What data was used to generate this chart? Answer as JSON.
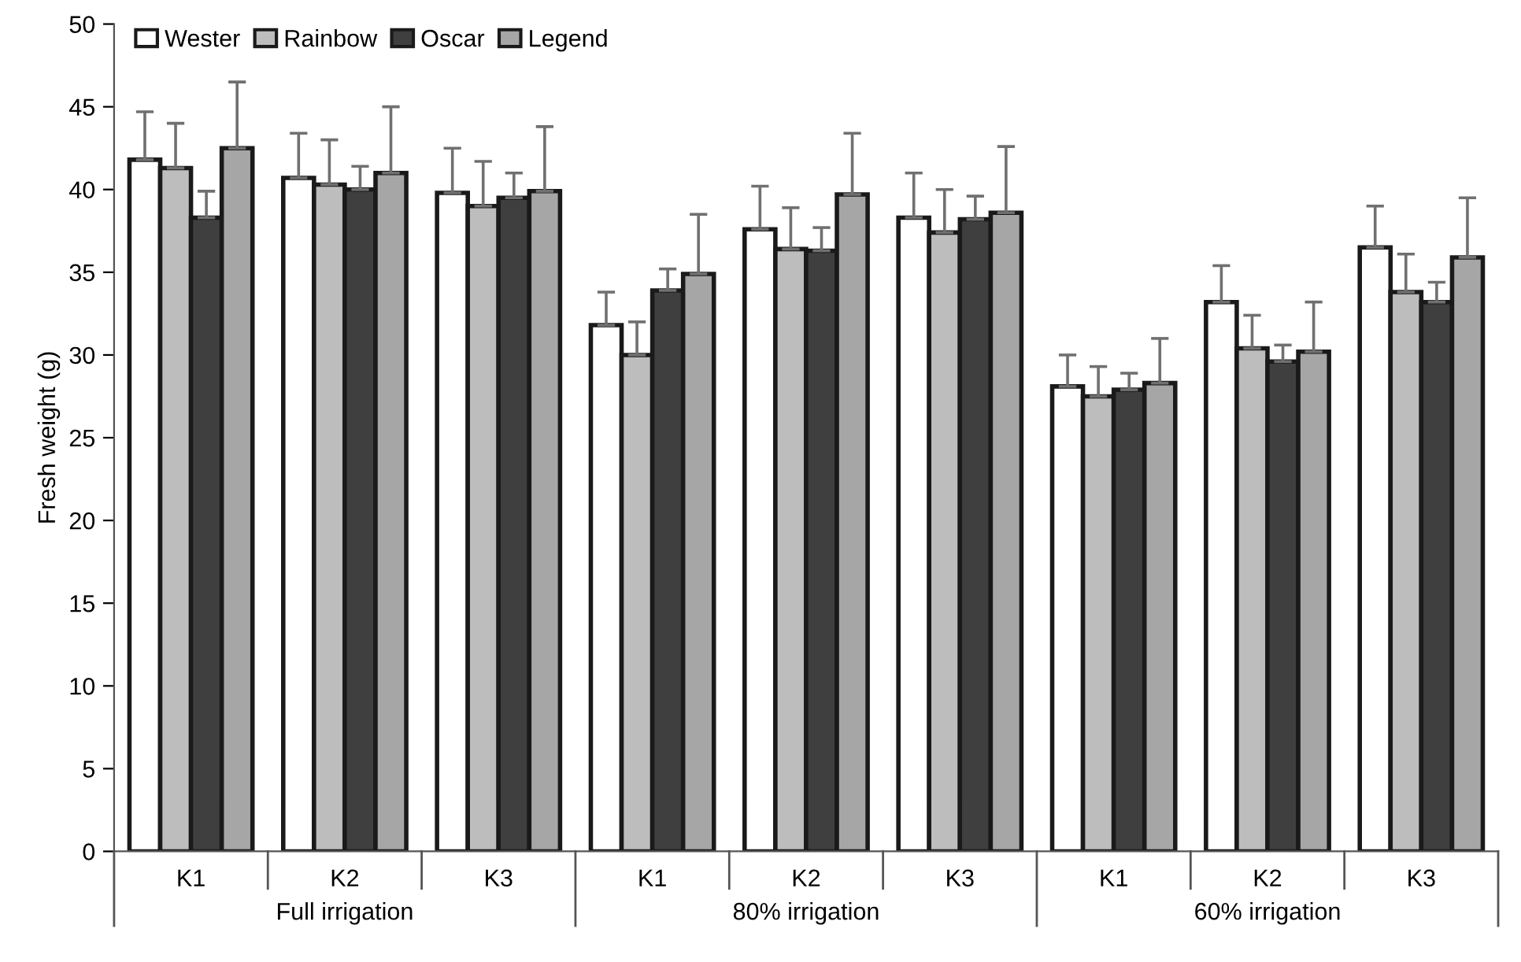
{
  "chart_data": {
    "type": "bar",
    "ylabel": "Fresh weight (g)",
    "categories": [
      "K1",
      "K2",
      "K3",
      "K1",
      "K2",
      "K3",
      "K1",
      "K2",
      "K3"
    ],
    "annotations": [
      "Full irrigation",
      "80% irrigation",
      "60% irrigation"
    ],
    "ylim": [
      0,
      50
    ],
    "yticks": [
      0,
      5,
      10,
      15,
      20,
      25,
      30,
      35,
      40,
      45,
      50
    ],
    "grid": false,
    "legend": "top left",
    "series": [
      {
        "name": "Wester",
        "color": "#ffffff",
        "values": [
          41.8,
          40.7,
          39.8,
          31.8,
          37.6,
          38.3,
          28.1,
          33.2,
          36.5
        ],
        "errors": [
          [
            41.8,
            44.7
          ],
          [
            40.7,
            43.4
          ],
          [
            39.8,
            42.5
          ],
          [
            31.8,
            33.8
          ],
          [
            37.6,
            40.2
          ],
          [
            38.3,
            41.0
          ],
          [
            28.1,
            30.0
          ],
          [
            33.2,
            35.4
          ],
          [
            36.5,
            39.0
          ]
        ]
      },
      {
        "name": "Rainbow",
        "color": "#bdbdbd",
        "values": [
          41.3,
          40.3,
          39.0,
          30.0,
          36.4,
          37.4,
          27.5,
          30.4,
          33.8
        ],
        "errors": [
          [
            41.3,
            44.0
          ],
          [
            40.3,
            43.0
          ],
          [
            39.0,
            41.7
          ],
          [
            30.0,
            32.0
          ],
          [
            36.4,
            38.9
          ],
          [
            37.4,
            40.0
          ],
          [
            27.5,
            29.3
          ],
          [
            30.4,
            32.4
          ],
          [
            33.8,
            36.1
          ]
        ]
      },
      {
        "name": "Oscar",
        "color": "#3f3f3f",
        "values": [
          38.3,
          40.0,
          39.5,
          33.9,
          36.3,
          38.2,
          27.9,
          29.6,
          33.2
        ],
        "errors": [
          [
            38.3,
            39.9
          ],
          [
            40.0,
            41.4
          ],
          [
            39.5,
            41.0
          ],
          [
            33.9,
            35.2
          ],
          [
            36.3,
            37.7
          ],
          [
            38.2,
            39.6
          ],
          [
            27.9,
            28.9
          ],
          [
            29.6,
            30.6
          ],
          [
            33.2,
            34.4
          ]
        ]
      },
      {
        "name": "Legend",
        "color": "#a6a6a6",
        "values": [
          42.5,
          41.0,
          39.9,
          34.9,
          39.7,
          38.6,
          28.3,
          30.2,
          35.9
        ],
        "errors": [
          [
            42.5,
            46.5
          ],
          [
            41.0,
            45.0
          ],
          [
            39.9,
            43.8
          ],
          [
            34.9,
            38.5
          ],
          [
            39.7,
            43.4
          ],
          [
            38.6,
            42.6
          ],
          [
            28.3,
            31.0
          ],
          [
            30.2,
            33.2
          ],
          [
            35.9,
            39.5
          ]
        ]
      }
    ]
  }
}
